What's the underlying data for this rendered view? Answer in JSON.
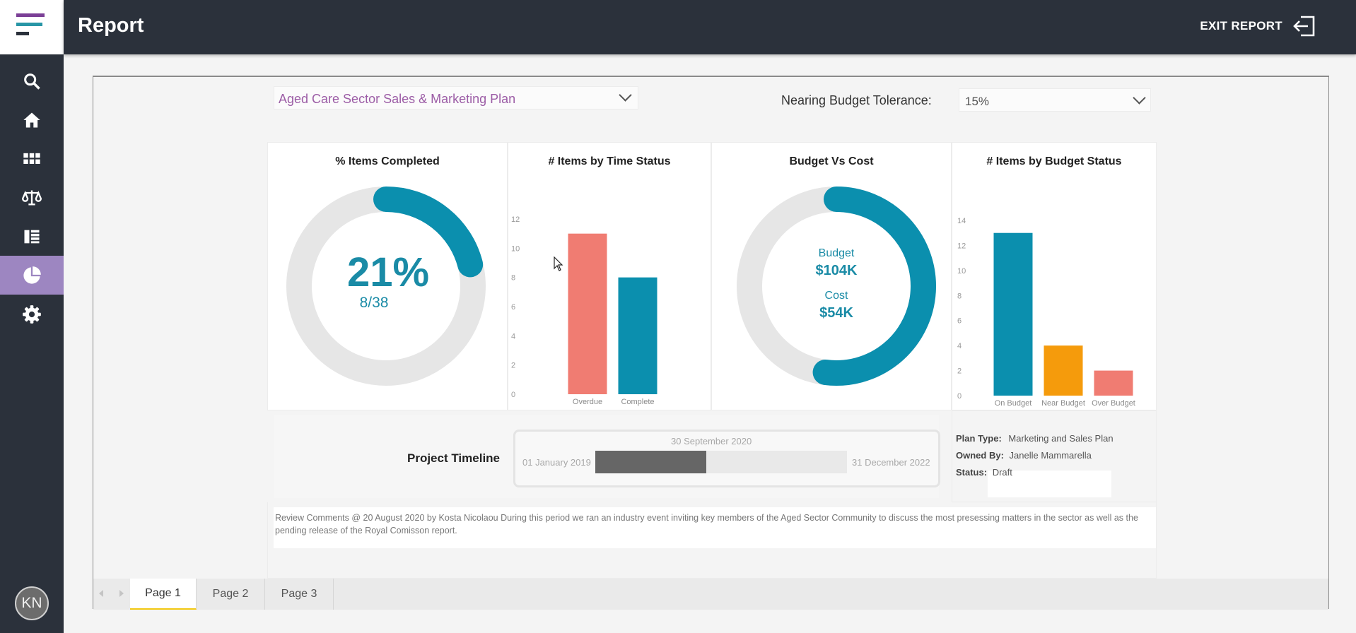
{
  "header": {
    "title": "Report",
    "exit_label": "EXIT REPORT"
  },
  "sidebar": {
    "logo_colors": [
      "#7b3f96",
      "#2896a6",
      "#2b313b"
    ],
    "items": [
      {
        "name": "search",
        "icon": "search-icon"
      },
      {
        "name": "home",
        "icon": "home-icon"
      },
      {
        "name": "apps",
        "icon": "grid-icon"
      },
      {
        "name": "compliance",
        "icon": "scales-icon"
      },
      {
        "name": "documents",
        "icon": "list-icon"
      },
      {
        "name": "reports",
        "icon": "pie-chart-icon",
        "active": true
      },
      {
        "name": "settings",
        "icon": "gear-icon"
      }
    ],
    "avatar_initials": "KN"
  },
  "filters": {
    "plan": "Aged Care Sector Sales & Marketing Plan",
    "tolerance_label": "Nearing Budget Tolerance:",
    "tolerance_value": "15%"
  },
  "panels": {
    "completed": {
      "title": "% Items Completed",
      "percent_text": "21%",
      "fraction_text": "8/38",
      "fraction": 0.21
    },
    "time_status": {
      "title": "# Items by Time Status"
    },
    "budget_cost": {
      "title": "Budget Vs Cost",
      "budget_label": "Budget",
      "budget_value": "$104K",
      "cost_label": "Cost",
      "cost_value": "$54K",
      "fraction": 0.52
    },
    "budget_status": {
      "title": "# Items by Budget Status"
    }
  },
  "timeline": {
    "label": "Project Timeline",
    "start": "01 January 2019",
    "end": "31 December 2022",
    "current": "30 September 2020",
    "progress": 0.44
  },
  "plan_info": {
    "type_label": "Plan Type:",
    "type_value": "Marketing and Sales Plan",
    "owner_label": "Owned By:",
    "owner_value": "Janelle Mammarella",
    "status_label": "Status:",
    "status_value": "Draft"
  },
  "comments": "Review Comments @ 20 August 2020 by Kosta Nicolaou During this period we ran an industry event inviting key members of the Aged Sector Community to discuss the most presessing matters in the sector as well as the pending release of the Royal Comisson report.",
  "tabs": [
    "Page 1",
    "Page 2",
    "Page 3"
  ],
  "colors": {
    "teal": "#0b8fae",
    "salmon": "#f07c72",
    "orange": "#f59b0c",
    "track": "#e6e6e6",
    "active_nav": "#9d86c1"
  },
  "chart_data": [
    {
      "type": "bar",
      "title": "# Items by Time Status",
      "categories": [
        "Overdue",
        "Complete"
      ],
      "values": [
        11,
        8
      ],
      "colors": [
        "#f07c72",
        "#0b8fae"
      ],
      "ylim": [
        0,
        12
      ],
      "yticks": [
        0,
        2,
        4,
        6,
        8,
        10,
        12
      ],
      "grid": false
    },
    {
      "type": "bar",
      "title": "# Items by Budget Status",
      "categories": [
        "On Budget",
        "Near Budget",
        "Over Budget"
      ],
      "values": [
        13,
        4,
        2
      ],
      "colors": [
        "#0b8fae",
        "#f59b0c",
        "#f07c72"
      ],
      "ylim": [
        0,
        14
      ],
      "yticks": [
        0,
        2,
        4,
        6,
        8,
        10,
        12,
        14
      ],
      "grid": false
    }
  ]
}
